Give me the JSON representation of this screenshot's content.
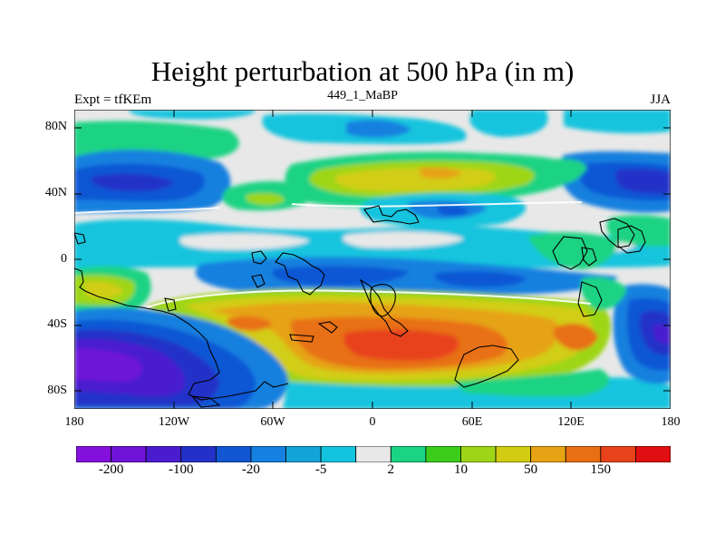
{
  "title": "Height perturbation at 500 hPa (in m)",
  "subtitle_left": "Expt = tfKEm",
  "subtitle_center": "449_1_MaBP",
  "subtitle_right": "JJA",
  "lat_ticks": [
    "80N",
    "40N",
    "0",
    "40S",
    "80S"
  ],
  "lon_ticks": [
    "180",
    "120W",
    "60W",
    "0",
    "60E",
    "120E",
    "180"
  ],
  "colorbar": {
    "colors": [
      "#8410de",
      "#6e14d8",
      "#4a1ccf",
      "#2431c8",
      "#1157d4",
      "#1580df",
      "#13a5d8",
      "#13c4de",
      "#e8e8e8",
      "#1ad383",
      "#3ccc1b",
      "#9ed617",
      "#d2cd13",
      "#e6a313",
      "#e86f13",
      "#e8431a",
      "#e20f12"
    ],
    "labels": [
      {
        "text": "-200",
        "index": 1
      },
      {
        "text": "-100",
        "index": 3
      },
      {
        "text": "-20",
        "index": 5
      },
      {
        "text": "-5",
        "index": 7
      },
      {
        "text": "2",
        "index": 9
      },
      {
        "text": "10",
        "index": 11
      },
      {
        "text": "50",
        "index": 13
      },
      {
        "text": "150",
        "index": 15
      }
    ]
  }
}
